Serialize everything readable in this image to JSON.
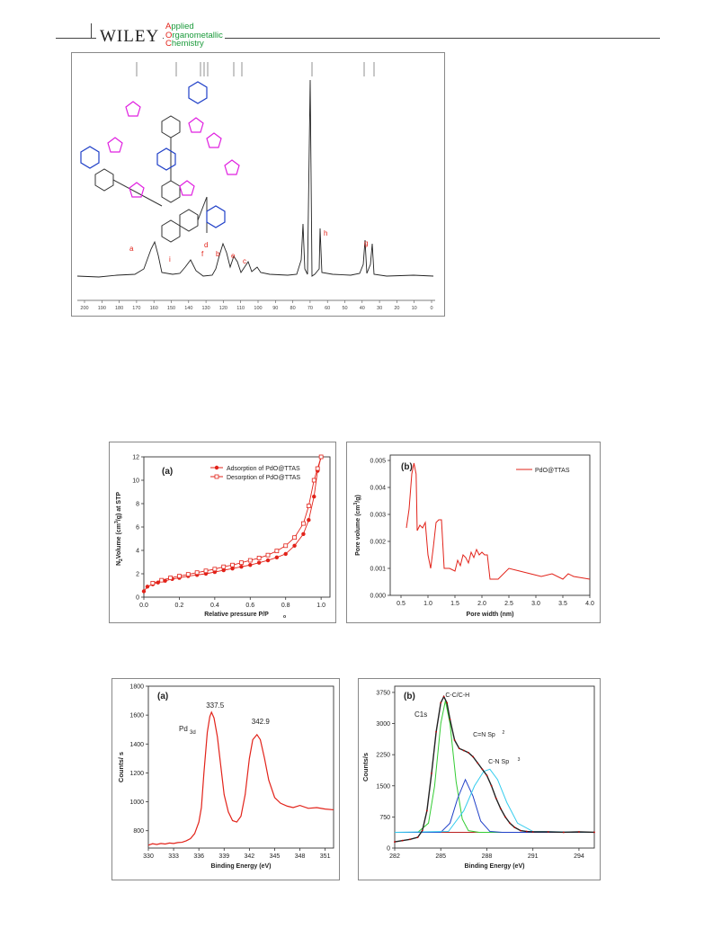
{
  "header": {
    "publisher": "WILEY",
    "journal_lines": [
      {
        "cap": "A",
        "rest": "pplied"
      },
      {
        "cap": "O",
        "rest": "rganometallic"
      },
      {
        "cap": "C",
        "rest": "hemistry"
      }
    ]
  },
  "colors": {
    "red": "#e2231a",
    "green": "#1a9a3a",
    "blue": "#2040c8",
    "magenta": "#e020e0"
  },
  "nmr": {
    "peak_labels": [
      "a",
      "i",
      "f",
      "d",
      "b",
      "e",
      "c",
      "h",
      "g"
    ],
    "x_ticks": [
      "200",
      "190",
      "180",
      "170",
      "160",
      "150",
      "140",
      "130",
      "120",
      "110",
      "100",
      "90",
      "80",
      "70",
      "60",
      "50",
      "40",
      "30",
      "20",
      "10",
      "0"
    ]
  },
  "chart_data": [
    {
      "type": "line",
      "panel": "(a)",
      "xlabel": "Relative pressure P/P",
      "xlabel_sub": "o",
      "ylabel": "N",
      "ylabel_rest": "Volume (cm",
      "ylabel_end": "/g) at STP",
      "xlim": [
        0,
        1.05
      ],
      "ylim": [
        0,
        12
      ],
      "x_ticks": [
        "0.0",
        "0.2",
        "0.4",
        "0.6",
        "0.8",
        "1.0"
      ],
      "y_ticks": [
        "0",
        "2",
        "4",
        "6",
        "8",
        "10",
        "12"
      ],
      "legend": "top-left",
      "series": [
        {
          "name": "Adsorption of PdO@TTAS",
          "x": [
            0.0,
            0.02,
            0.05,
            0.08,
            0.12,
            0.16,
            0.2,
            0.25,
            0.3,
            0.35,
            0.4,
            0.45,
            0.5,
            0.55,
            0.6,
            0.65,
            0.7,
            0.75,
            0.8,
            0.85,
            0.9,
            0.93,
            0.96,
            0.98,
            1.0
          ],
          "y": [
            0.5,
            0.9,
            1.1,
            1.25,
            1.4,
            1.55,
            1.65,
            1.8,
            1.9,
            2.0,
            2.15,
            2.3,
            2.45,
            2.6,
            2.75,
            2.95,
            3.15,
            3.4,
            3.7,
            4.4,
            5.4,
            6.6,
            8.6,
            10.8,
            12.0
          ]
        },
        {
          "name": "Desorption of PdO@TTAS",
          "x": [
            1.0,
            0.98,
            0.96,
            0.93,
            0.9,
            0.85,
            0.8,
            0.75,
            0.7,
            0.65,
            0.6,
            0.55,
            0.5,
            0.45,
            0.4,
            0.35,
            0.3,
            0.25,
            0.2,
            0.15,
            0.1,
            0.05
          ],
          "y": [
            12.0,
            11.0,
            10.0,
            7.8,
            6.3,
            5.1,
            4.4,
            3.95,
            3.6,
            3.35,
            3.15,
            2.95,
            2.75,
            2.6,
            2.4,
            2.25,
            2.1,
            1.95,
            1.8,
            1.65,
            1.45,
            1.2
          ]
        }
      ]
    },
    {
      "type": "line",
      "panel": "(b)",
      "xlabel": "Pore width (nm)",
      "ylabel": "Pore volume (cm",
      "ylabel_end": "/g)",
      "xlim": [
        0.3,
        4.0
      ],
      "ylim": [
        0,
        0.0052
      ],
      "x_ticks": [
        "0.5",
        "1.0",
        "1.5",
        "2.0",
        "2.5",
        "3.0",
        "3.5",
        "4.0"
      ],
      "y_ticks": [
        "0.000",
        "0.001",
        "0.002",
        "0.003",
        "0.004",
        "0.005"
      ],
      "legend": "top-right",
      "series": [
        {
          "name": "PdO@TTAS",
          "x": [
            0.6,
            0.65,
            0.7,
            0.74,
            0.78,
            0.8,
            0.85,
            0.9,
            0.95,
            1.0,
            1.05,
            1.1,
            1.15,
            1.2,
            1.25,
            1.3,
            1.4,
            1.5,
            1.55,
            1.6,
            1.65,
            1.7,
            1.75,
            1.8,
            1.85,
            1.9,
            1.95,
            2.0,
            2.05,
            2.1,
            2.15,
            2.3,
            2.5,
            2.7,
            2.9,
            3.1,
            3.3,
            3.5,
            3.6,
            3.7,
            4.0
          ],
          "y": [
            0.0025,
            0.0032,
            0.0045,
            0.0049,
            0.0045,
            0.0024,
            0.0026,
            0.0025,
            0.0027,
            0.0015,
            0.001,
            0.0018,
            0.0027,
            0.0028,
            0.0028,
            0.001,
            0.001,
            0.0009,
            0.0013,
            0.0011,
            0.0015,
            0.0014,
            0.0012,
            0.0016,
            0.0014,
            0.0017,
            0.0015,
            0.0016,
            0.0015,
            0.0015,
            0.0006,
            0.0006,
            0.001,
            0.0009,
            0.0008,
            0.0007,
            0.0008,
            0.0006,
            0.0008,
            0.0007,
            0.0006
          ]
        }
      ]
    },
    {
      "type": "line",
      "panel": "(a)",
      "xlabel": "Binding Energy (eV)",
      "ylabel": "Counts/ s",
      "label_main": "Pd",
      "label_sub": "3d",
      "xlim": [
        330,
        352
      ],
      "ylim": [
        680,
        1800
      ],
      "x_ticks": [
        "330",
        "333",
        "336",
        "339",
        "342",
        "345",
        "348",
        "351"
      ],
      "y_ticks": [
        "800",
        "1000",
        "1200",
        "1400",
        "1600",
        "1800"
      ],
      "annotations": [
        "337.5",
        "342.9"
      ],
      "series": [
        {
          "name": "",
          "x": [
            330,
            330.5,
            331,
            331.5,
            332,
            332.5,
            333,
            333.5,
            334,
            334.5,
            335,
            335.5,
            336,
            336.3,
            336.6,
            337,
            337.3,
            337.5,
            337.8,
            338.2,
            338.6,
            339,
            339.5,
            340,
            340.5,
            341,
            341.5,
            342,
            342.4,
            342.9,
            343.3,
            343.8,
            344.3,
            345,
            345.7,
            346.5,
            347.2,
            348,
            349,
            350,
            351,
            352
          ],
          "y": [
            700,
            710,
            705,
            712,
            708,
            715,
            712,
            718,
            720,
            730,
            745,
            780,
            860,
            960,
            1200,
            1480,
            1590,
            1620,
            1580,
            1450,
            1250,
            1050,
            930,
            870,
            860,
            900,
            1050,
            1300,
            1430,
            1465,
            1430,
            1300,
            1150,
            1030,
            990,
            970,
            960,
            975,
            955,
            960,
            950,
            945
          ]
        }
      ]
    },
    {
      "type": "line",
      "panel": "(b)",
      "xlabel": "Binding Energy (eV)",
      "ylabel": "Counts/s",
      "label_main": "C1s",
      "xlim": [
        282,
        295
      ],
      "ylim": [
        0,
        3900
      ],
      "x_ticks": [
        "282",
        "285",
        "288",
        "291",
        "294"
      ],
      "y_ticks": [
        "0",
        "750",
        "1500",
        "2250",
        "3000",
        "3750"
      ],
      "annotations": [
        "C-C/C-H",
        "C=N  Sp",
        "C-N  Sp"
      ],
      "annotation_sup": [
        "2",
        "3"
      ],
      "series": [
        {
          "name": "",
          "x": [
            282,
            282.5,
            283,
            283.5,
            283.8,
            284.1,
            284.4,
            284.7,
            285,
            285.2,
            285.4,
            285.6,
            285.9,
            286.2,
            286.5,
            286.8,
            287.1,
            287.4,
            287.7,
            288,
            288.3,
            288.6,
            288.9,
            289.2,
            289.5,
            289.8,
            290.2,
            290.6,
            291,
            292,
            293,
            294,
            295
          ],
          "y": [
            150,
            180,
            210,
            260,
            420,
            900,
            1800,
            2800,
            3500,
            3650,
            3500,
            3100,
            2600,
            2400,
            2350,
            2300,
            2200,
            2050,
            1900,
            1750,
            1500,
            1200,
            950,
            750,
            600,
            500,
            420,
            400,
            390,
            390,
            380,
            390,
            380
          ]
        },
        {
          "name": "",
          "x": [
            282,
            283.5,
            284.2,
            284.6,
            285,
            285.3,
            285.6,
            286,
            286.4,
            286.8,
            287.5,
            295
          ],
          "y": [
            380,
            380,
            600,
            1500,
            3000,
            3550,
            3000,
            1600,
            700,
            420,
            380,
            380
          ]
        },
        {
          "name": "",
          "x": [
            282,
            285,
            285.6,
            286.1,
            286.6,
            287.1,
            287.6,
            288.2,
            289,
            295
          ],
          "y": [
            380,
            380,
            600,
            1200,
            1650,
            1250,
            650,
            400,
            380,
            380
          ]
        },
        {
          "name": "",
          "x": [
            282,
            285.5,
            286.5,
            287.2,
            287.8,
            288.2,
            288.7,
            289.3,
            290,
            291,
            295
          ],
          "y": [
            380,
            400,
            900,
            1500,
            1850,
            1900,
            1650,
            1100,
            600,
            400,
            380
          ]
        }
      ]
    }
  ]
}
